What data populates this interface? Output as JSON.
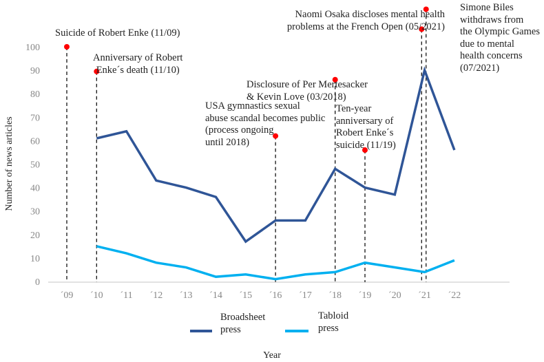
{
  "chart_data": {
    "type": "line",
    "xlabel": "Year",
    "ylabel": "Number of news articles",
    "categories": [
      "´09",
      "´10",
      "´11",
      "´12",
      "´13",
      "´14",
      "´15",
      "´16",
      "´17",
      "´18",
      "´19",
      "´20",
      "´21",
      "´22"
    ],
    "ylim": [
      0,
      100
    ],
    "yticks": [
      0,
      10,
      20,
      30,
      40,
      50,
      60,
      70,
      80,
      90,
      100
    ],
    "grid": false,
    "legend_position": "bottom",
    "series": [
      {
        "name": "Broadsheet\npress",
        "color": "#2F5597",
        "values": [
          null,
          61,
          64,
          43,
          40,
          36,
          17,
          26,
          26,
          48,
          40,
          37,
          90,
          56
        ]
      },
      {
        "name": "Tabloid\npress",
        "color": "#00B0F0",
        "values": [
          null,
          15,
          12,
          8,
          6,
          2,
          3,
          1,
          3,
          4,
          8,
          6,
          4,
          9
        ]
      }
    ],
    "event_color": "#FF0000",
    "events": [
      {
        "x": 0,
        "y": 100,
        "label": "Suicide of Robert Enke (11/09)"
      },
      {
        "x": 1,
        "y": 89.5,
        "label": "Anniversary of Robert\nEnke´s death (11/10)"
      },
      {
        "x": 7,
        "y": 62,
        "label": "USA gymnastics sexual\nabuse scandal becomes public\n(process ongoing\nuntil 2018)"
      },
      {
        "x": 9,
        "y": 86,
        "label": "Disclosure of Per Mertesacker\n& Kevin Love (03/2018)"
      },
      {
        "x": 10,
        "y": 56,
        "label": "Ten-year\nanniversary of\nRobert Enke´s\nsuicide (11/19)"
      },
      {
        "x": 11.9,
        "y": 107.5,
        "label": "Naomi Osaka discloses mental health\nproblems at the French Open (05/2021)"
      },
      {
        "x": 12.05,
        "y": 116,
        "label": "Simone Biles\nwithdraws from\nthe Olympic Games\ndue to mental\nhealth concerns\n(07/2021)"
      }
    ]
  }
}
